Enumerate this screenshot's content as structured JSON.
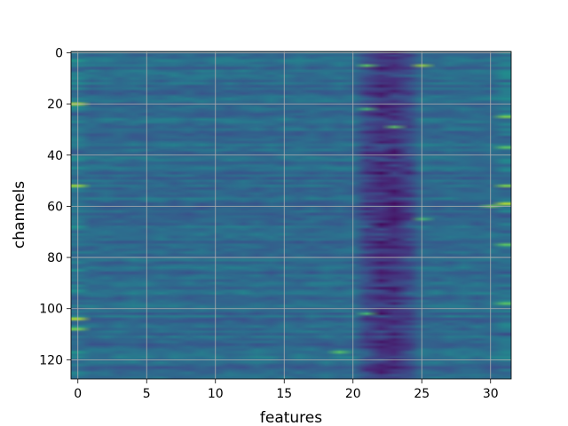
{
  "chart_data": {
    "type": "heatmap",
    "title": "",
    "xlabel": "features",
    "ylabel": "channels",
    "xlim": [
      -0.5,
      31.5
    ],
    "ylim": [
      127.5,
      -0.5
    ],
    "n_features": 32,
    "n_channels": 128,
    "xticks": [
      0,
      5,
      10,
      15,
      20,
      25,
      30
    ],
    "xtick_labels": [
      "0",
      "5",
      "10",
      "15",
      "20",
      "25",
      "30"
    ],
    "yticks": [
      0,
      20,
      40,
      60,
      80,
      100,
      120
    ],
    "ytick_labels": [
      "0",
      "20",
      "40",
      "60",
      "80",
      "100",
      "120"
    ],
    "grid": true,
    "colormap": "viridis",
    "interpolation": "bilinear",
    "value_range": [
      0,
      1
    ],
    "base_level": 0.35,
    "dark_band": {
      "features": [
        20,
        25
      ],
      "center_feature": 22.5,
      "level": 0.12
    },
    "bright_spots": [
      {
        "channel": 20,
        "feature": 0,
        "value": 0.9
      },
      {
        "channel": 52,
        "feature": 0,
        "value": 0.85
      },
      {
        "channel": 104,
        "feature": 0,
        "value": 0.9
      },
      {
        "channel": 108,
        "feature": 0,
        "value": 0.8
      },
      {
        "channel": 5,
        "feature": 25,
        "value": 0.85
      },
      {
        "channel": 5,
        "feature": 21,
        "value": 0.75
      },
      {
        "channel": 29,
        "feature": 23,
        "value": 0.75
      },
      {
        "channel": 65,
        "feature": 25,
        "value": 0.7
      },
      {
        "channel": 117,
        "feature": 19,
        "value": 0.75
      },
      {
        "channel": 59,
        "feature": 31,
        "value": 0.9
      },
      {
        "channel": 60,
        "feature": 30,
        "value": 0.8
      },
      {
        "channel": 25,
        "feature": 31,
        "value": 0.8
      },
      {
        "channel": 37,
        "feature": 31,
        "value": 0.75
      },
      {
        "channel": 52,
        "feature": 31,
        "value": 0.8
      },
      {
        "channel": 75,
        "feature": 31,
        "value": 0.75
      },
      {
        "channel": 98,
        "feature": 31,
        "value": 0.75
      },
      {
        "channel": 22,
        "feature": 21,
        "value": 0.7
      },
      {
        "channel": 102,
        "feature": 21,
        "value": 0.7
      }
    ],
    "colors": {
      "grid": "#b0b0b0",
      "axis": "#000000"
    }
  }
}
